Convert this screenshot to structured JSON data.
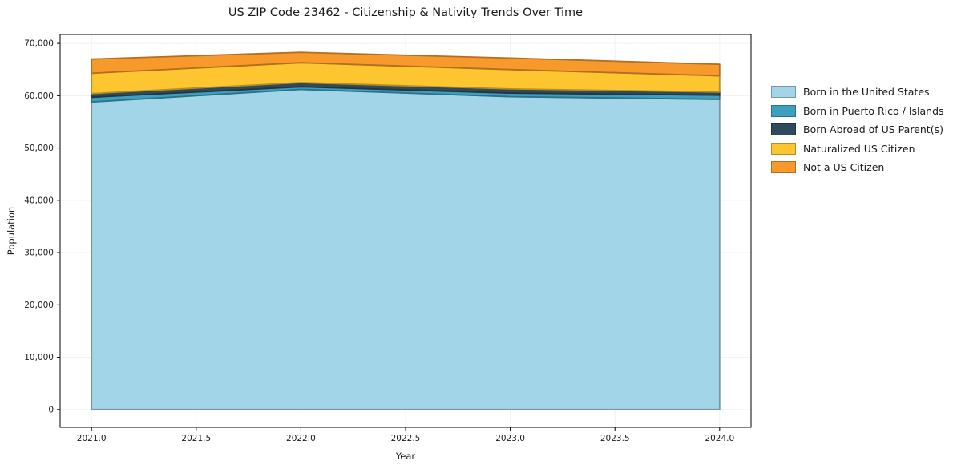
{
  "title": "US ZIP Code 23462 - Citizenship & Nativity Trends Over Time",
  "chart_data": {
    "type": "area",
    "stacked": true,
    "title": "US ZIP Code 23462 - Citizenship & Nativity Trends Over Time",
    "xlabel": "Year",
    "ylabel": "Population",
    "x": [
      2021,
      2022,
      2023,
      2024
    ],
    "series": [
      {
        "name": "Born in the United States",
        "color": "#A3D5E8",
        "values": [
          58800,
          61200,
          59800,
          59300
        ]
      },
      {
        "name": "Born in Puerto Rico / Islands",
        "color": "#3D9FBE",
        "values": [
          900,
          500,
          700,
          800
        ]
      },
      {
        "name": "Born Abroad of US Parent(s)",
        "color": "#2E4A5B",
        "values": [
          700,
          800,
          800,
          600
        ]
      },
      {
        "name": "Naturalized US Citizen",
        "color": "#FDC52F",
        "values": [
          3900,
          3800,
          3700,
          3100
        ]
      },
      {
        "name": "Not a US Citizen",
        "color": "#F8992C",
        "values": [
          2700,
          2000,
          2200,
          2200
        ]
      }
    ],
    "xlim": [
      2020.85,
      2024.15
    ],
    "ylim": [
      -3400,
      71700
    ],
    "xtick_values": [
      2021,
      2021.5,
      2022,
      2022.5,
      2023,
      2023.5,
      2024
    ],
    "xtick_labels": [
      "2021.0",
      "2021.5",
      "2022.0",
      "2022.5",
      "2023.0",
      "2023.5",
      "2024.0"
    ],
    "ytick_values": [
      0,
      10000,
      20000,
      30000,
      40000,
      50000,
      60000,
      70000
    ],
    "ytick_labels": [
      "0",
      "10,000",
      "20,000",
      "30,000",
      "40,000",
      "50,000",
      "60,000",
      "70,000"
    ],
    "grid": true,
    "legend_position": "right"
  }
}
